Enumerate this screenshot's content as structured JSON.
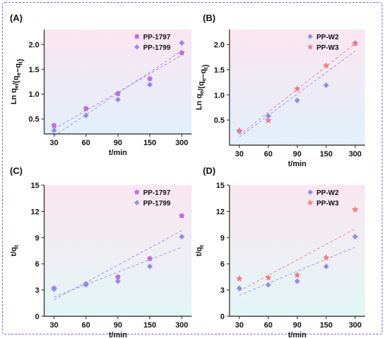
{
  "figure": {
    "panels": [
      {
        "id": "A",
        "panel_label": "(A)",
        "ylabel_main": "Ln q",
        "ylabel_sub_1": "e",
        "ylabel_mid": "/(q",
        "ylabel_sub_2": "e",
        "ylabel_dash": "−q",
        "ylabel_sub_3": "t",
        "ylabel_end": ")",
        "xlabel": "t/min",
        "background": [
          "#fbe6f0",
          "#e2f0fb"
        ],
        "chart_data": {
          "type": "scatter",
          "categories": [
            "30",
            "60",
            "90",
            "150",
            "300"
          ],
          "ylim": [
            0.2,
            2.3
          ],
          "yticks": [
            "0.5",
            "1.0",
            "1.5",
            "2.0"
          ],
          "ytick_values": [
            0.5,
            1.0,
            1.5,
            2.0
          ],
          "legend_position": "top-right",
          "series": [
            {
              "name": "PP-1797",
              "marker": "pentagon",
              "color": "#c06ee6",
              "values": [
                0.37,
                0.71,
                1.01,
                1.31,
                1.83
              ],
              "fit": [
                0.3,
                1.78
              ]
            },
            {
              "name": "PP-1799",
              "marker": "diamond",
              "color": "#8f8fe6",
              "values": [
                0.27,
                0.57,
                0.89,
                1.19,
                2.03
              ],
              "fit": [
                0.16,
                1.87
              ]
            }
          ]
        }
      },
      {
        "id": "B",
        "panel_label": "(B)",
        "ylabel_main": "Ln q",
        "ylabel_sub_1": "e",
        "ylabel_mid": "/(q",
        "ylabel_sub_2": "e",
        "ylabel_dash": "−q",
        "ylabel_sub_3": "t",
        "ylabel_end": ")",
        "xlabel": "t/min",
        "background": [
          "#fbe6f0",
          "#e2f0fb"
        ],
        "chart_data": {
          "type": "scatter",
          "categories": [
            "30",
            "60",
            "90",
            "150",
            "300"
          ],
          "ylim": [
            0.0,
            2.3
          ],
          "yticks": [
            "0.5",
            "1.0",
            "1.5",
            "2.0"
          ],
          "ytick_values": [
            0.5,
            1.0,
            1.5,
            2.0
          ],
          "legend_position": "top-right",
          "series": [
            {
              "name": "PP-W2",
              "marker": "diamond",
              "color": "#8f8fe6",
              "values": [
                0.28,
                0.58,
                0.89,
                1.19,
                2.03
              ],
              "fit": [
                0.16,
                1.87
              ]
            },
            {
              "name": "PP-W3",
              "marker": "star",
              "color": "#ef7a88",
              "values": [
                0.29,
                0.49,
                1.12,
                1.58,
                2.02
              ],
              "fit": [
                0.2,
                2.02
              ]
            }
          ]
        }
      },
      {
        "id": "C",
        "panel_label": "(C)",
        "ylabel_main": "t/q",
        "ylabel_sub_1": "t",
        "ylabel_mid": "",
        "ylabel_sub_2": "",
        "ylabel_dash": "",
        "ylabel_sub_3": "",
        "ylabel_end": "",
        "xlabel": "t/min",
        "background": [
          "#fbe6f0",
          "#e2f6f6"
        ],
        "chart_data": {
          "type": "scatter",
          "categories": [
            "30",
            "60",
            "90",
            "150",
            "300"
          ],
          "ylim": [
            0,
            15
          ],
          "yticks": [
            "0",
            "3",
            "6",
            "9",
            "12",
            "15"
          ],
          "ytick_values": [
            0,
            3,
            6,
            9,
            12,
            15
          ],
          "legend_position": "top-right",
          "series": [
            {
              "name": "PP-1797",
              "marker": "pentagon",
              "color": "#c06ee6",
              "values": [
                3.2,
                3.7,
                4.5,
                6.6,
                11.5
              ],
              "fit": [
                1.9,
                9.8
              ]
            },
            {
              "name": "PP-1799",
              "marker": "diamond",
              "color": "#8f8fe6",
              "values": [
                3.1,
                3.6,
                4.0,
                5.7,
                9.1
              ],
              "fit": [
                2.2,
                7.9
              ]
            }
          ]
        }
      },
      {
        "id": "D",
        "panel_label": "(D)",
        "ylabel_main": "t/q",
        "ylabel_sub_1": "t",
        "ylabel_mid": "",
        "ylabel_sub_2": "",
        "ylabel_dash": "",
        "ylabel_sub_3": "",
        "ylabel_end": "",
        "xlabel": "t/min",
        "background": [
          "#fbe6f0",
          "#e2f6f6"
        ],
        "chart_data": {
          "type": "scatter",
          "categories": [
            "30",
            "60",
            "90",
            "150",
            "300"
          ],
          "ylim": [
            0,
            15
          ],
          "yticks": [
            "0",
            "3",
            "6",
            "9",
            "12",
            "15"
          ],
          "ytick_values": [
            0,
            3,
            6,
            9,
            12,
            15
          ],
          "legend_position": "top-right",
          "series": [
            {
              "name": "PP-W2",
              "marker": "diamond",
              "color": "#8f8fe6",
              "values": [
                3.2,
                3.6,
                4.0,
                5.7,
                9.1
              ],
              "fit": [
                2.4,
                7.9
              ]
            },
            {
              "name": "PP-W3",
              "marker": "star",
              "color": "#ef7a88",
              "values": [
                4.3,
                4.4,
                4.7,
                6.7,
                12.2
              ],
              "fit": [
                2.9,
                10.0
              ]
            }
          ]
        }
      }
    ]
  }
}
